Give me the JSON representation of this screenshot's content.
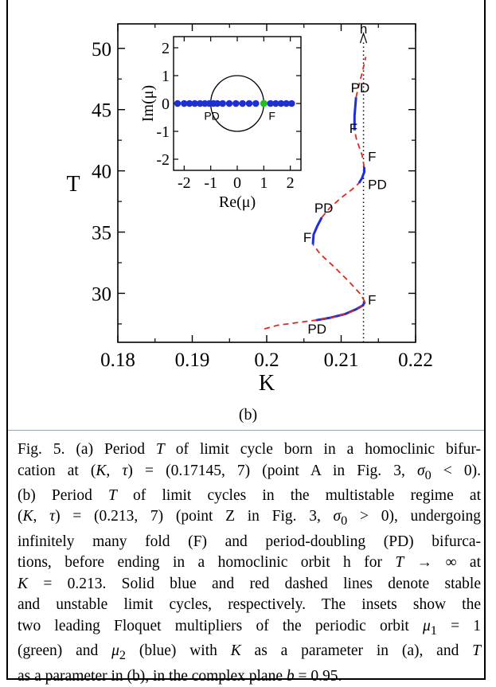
{
  "figure": {
    "panel_label": "(b)",
    "main": {
      "xlabel": "K",
      "ylabel": "T",
      "xlim": [
        0.18,
        0.22
      ],
      "ylim": [
        26,
        52
      ],
      "xticks": [
        0.18,
        0.19,
        0.2,
        0.21,
        0.22
      ],
      "xtick_labels": [
        "0.18",
        "0.19",
        "0.2",
        "0.21",
        "0.22"
      ],
      "yticks": [
        30,
        35,
        40,
        45,
        50
      ],
      "ytick_labels": [
        "30",
        "35",
        "40",
        "45",
        "50"
      ],
      "h_label": "h",
      "asymptote_K": 0.213,
      "markers": [
        {
          "text": "F",
          "K": 0.2136,
          "T": 29.1
        },
        {
          "text": "PD",
          "K": 0.2055,
          "T": 26.7
        },
        {
          "text": "PD",
          "K": 0.2064,
          "T": 36.6
        },
        {
          "text": "F",
          "K": 0.2049,
          "T": 34.2
        },
        {
          "text": "F",
          "K": 0.2136,
          "T": 40.8
        },
        {
          "text": "PD",
          "K": 0.2136,
          "T": 38.5
        },
        {
          "text": "PD",
          "K": 0.2113,
          "T": 46.4
        },
        {
          "text": "F",
          "K": 0.2111,
          "T": 43.1
        }
      ]
    },
    "inset": {
      "xlabel": "Re(μ)",
      "ylabel": "Im(μ)",
      "xlim": [
        -2.4,
        2.4
      ],
      "ylim": [
        -2.4,
        2.4
      ],
      "xticks": [
        -2,
        -1,
        0,
        1,
        2
      ],
      "xtick_labels": [
        "-2",
        "-1",
        "0",
        "1",
        "2"
      ],
      "yticks": [
        -2,
        -1,
        0,
        1,
        2
      ],
      "ytick_labels": [
        "-2",
        "-1",
        "0",
        "1",
        "2"
      ],
      "labels": [
        {
          "text": "PD",
          "x": -1.25,
          "y": -0.42
        },
        {
          "text": "F",
          "x": 1.18,
          "y": -0.42
        }
      ],
      "blue_points_re": [
        -2.25,
        -2.0,
        -1.8,
        -1.6,
        -1.4,
        -1.22,
        -1.05,
        -0.9,
        -0.75,
        -0.55,
        -0.3,
        -0.05,
        0.2,
        0.45,
        0.7,
        1.25,
        1.45,
        1.65,
        1.85,
        2.05
      ],
      "green_point_re": 1.0
    },
    "colors": {
      "stable": "#1f2fd6",
      "unstable": "#e0281e",
      "green": "#22c01f",
      "blue_points": "#1f2fd6"
    }
  },
  "chart_data": {
    "type": "line",
    "xlabel": "K",
    "ylabel": "T",
    "xlim": [
      0.18,
      0.22
    ],
    "ylim": [
      26,
      52
    ],
    "series": [
      {
        "name": "",
        "style": "solid",
        "color": "#1f2fd6",
        "x": [
          0.2066,
          0.2085,
          0.2105,
          0.212,
          0.2129,
          0.2132
        ],
        "y": [
          27.8,
          28.0,
          28.3,
          28.7,
          29.0,
          29.3
        ]
      },
      {
        "name": "",
        "style": "dashed",
        "color": "#e0281e",
        "x": [
          0.1997,
          0.2015,
          0.204,
          0.2065,
          0.209,
          0.211,
          0.2125,
          0.2132
        ],
        "y": [
          27.1,
          27.4,
          27.6,
          27.8,
          28.05,
          28.4,
          28.8,
          29.3
        ]
      },
      {
        "name": "",
        "style": "dashed",
        "color": "#e0281e",
        "x": [
          0.2132,
          0.2125,
          0.211,
          0.209,
          0.2072,
          0.2062
        ],
        "y": [
          29.3,
          30.0,
          31.0,
          32.2,
          33.2,
          34.0
        ]
      },
      {
        "name": "",
        "style": "solid",
        "color": "#1f2fd6",
        "x": [
          0.2062,
          0.2063,
          0.2068,
          0.2074
        ],
        "y": [
          34.0,
          34.8,
          35.5,
          36.2
        ]
      },
      {
        "name": "",
        "style": "dashed",
        "color": "#e0281e",
        "x": [
          0.2074,
          0.2085,
          0.21,
          0.2115,
          0.2124
        ],
        "y": [
          36.2,
          37.0,
          37.8,
          38.5,
          39.0
        ]
      },
      {
        "name": "",
        "style": "solid",
        "color": "#1f2fd6",
        "x": [
          0.2124,
          0.2128,
          0.2131,
          0.2131
        ],
        "y": [
          39.0,
          39.4,
          39.9,
          40.3
        ]
      },
      {
        "name": "",
        "style": "dashed",
        "color": "#e0281e",
        "x": [
          0.2131,
          0.2128,
          0.2121,
          0.2118
        ],
        "y": [
          40.3,
          41.3,
          42.5,
          43.3
        ]
      },
      {
        "name": "",
        "style": "solid",
        "color": "#1f2fd6",
        "x": [
          0.2118,
          0.2118,
          0.212
        ],
        "y": [
          43.3,
          44.5,
          46.0
        ]
      },
      {
        "name": "",
        "style": "dashed",
        "color": "#e0281e",
        "x": [
          0.212,
          0.2124,
          0.2129,
          0.2132,
          0.2133
        ],
        "y": [
          46.0,
          47.0,
          48.2,
          49.0,
          49.3
        ]
      }
    ]
  },
  "caption": {
    "lines": [
      "Fig. 5.    (a) Period <i>T</i> of limit cycle born in a homoclinic bifur-",
      "cation at (<i>K</i>, <i>τ</i>) = (0.17145, 7) (point A in Fig. 3, <i>σ</i><sub>0</sub> &lt; 0).",
      "(b) Period <i>T</i> of limit cycles in the multistable regime at",
      "(<i>K</i>, <i>τ</i>) = (0.213, 7) (point Z in Fig. 3, <i>σ</i><sub>0</sub> &gt; 0), undergoing",
      "infinitely many fold (F) and period-doubling (PD) bifurca-",
      "tions, before ending in a homoclinic orbit h for <i>T</i> → ∞ at",
      "<i>K</i> = 0.213. Solid blue and red dashed lines denote stable",
      "and unstable limit cycles, respectively. The insets show the",
      "two leading Floquet multipliers of the periodic orbit <i>μ</i><sub>1</sub> = 1",
      "(green) and <i>μ</i><sub>2</sub> (blue) with <i>K</i> as a parameter in (a), and <i>T</i>",
      "as a parameter in (b), in the complex plane <i>b</i> = 0.95."
    ]
  }
}
